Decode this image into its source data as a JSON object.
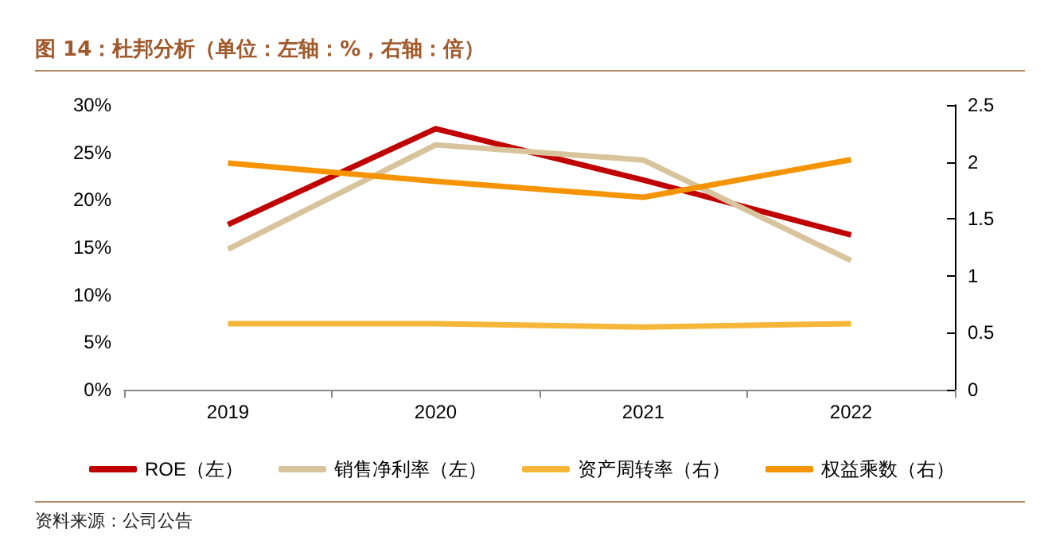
{
  "chart_data": {
    "type": "line",
    "title": "图 14：杜邦分析（单位：左轴：%，右轴：倍）",
    "categories": [
      "2019",
      "2020",
      "2021",
      "2022"
    ],
    "series": [
      {
        "name": "ROE（左）",
        "color": "#c00000",
        "values": [
          17.4,
          27.5,
          22.1,
          16.3
        ]
      },
      {
        "name": "销售净利率（左）",
        "color": "#d8c49c",
        "values": [
          14.8,
          25.8,
          24.2,
          13.6
        ]
      },
      {
        "name": "资产周转率（右）",
        "color": "#f6b63a",
        "axis": "y2",
        "values": [
          0.58,
          0.58,
          0.55,
          0.58
        ]
      },
      {
        "name": "权益乘数（右）",
        "color": "#f59400",
        "axis": "y2",
        "values": [
          1.99,
          1.83,
          1.69,
          2.02
        ]
      }
    ],
    "ylim": [
      0,
      30
    ],
    "yticks": [
      {
        "value": 0,
        "label": "0%"
      },
      {
        "value": 5,
        "label": "5%"
      },
      {
        "value": 10,
        "label": "10%"
      },
      {
        "value": 15,
        "label": "15%"
      },
      {
        "value": 20,
        "label": "20%"
      },
      {
        "value": 25,
        "label": "25%"
      },
      {
        "value": 30,
        "label": "30%"
      }
    ],
    "y2lim": [
      0,
      2.5
    ],
    "y2ticks": [
      0,
      0.5,
      1,
      1.5,
      2,
      2.5
    ],
    "legend": "bottom",
    "grid": false,
    "marker": "none",
    "line_style": "solid",
    "annotations": [
      "资料来源：公司公告"
    ]
  }
}
